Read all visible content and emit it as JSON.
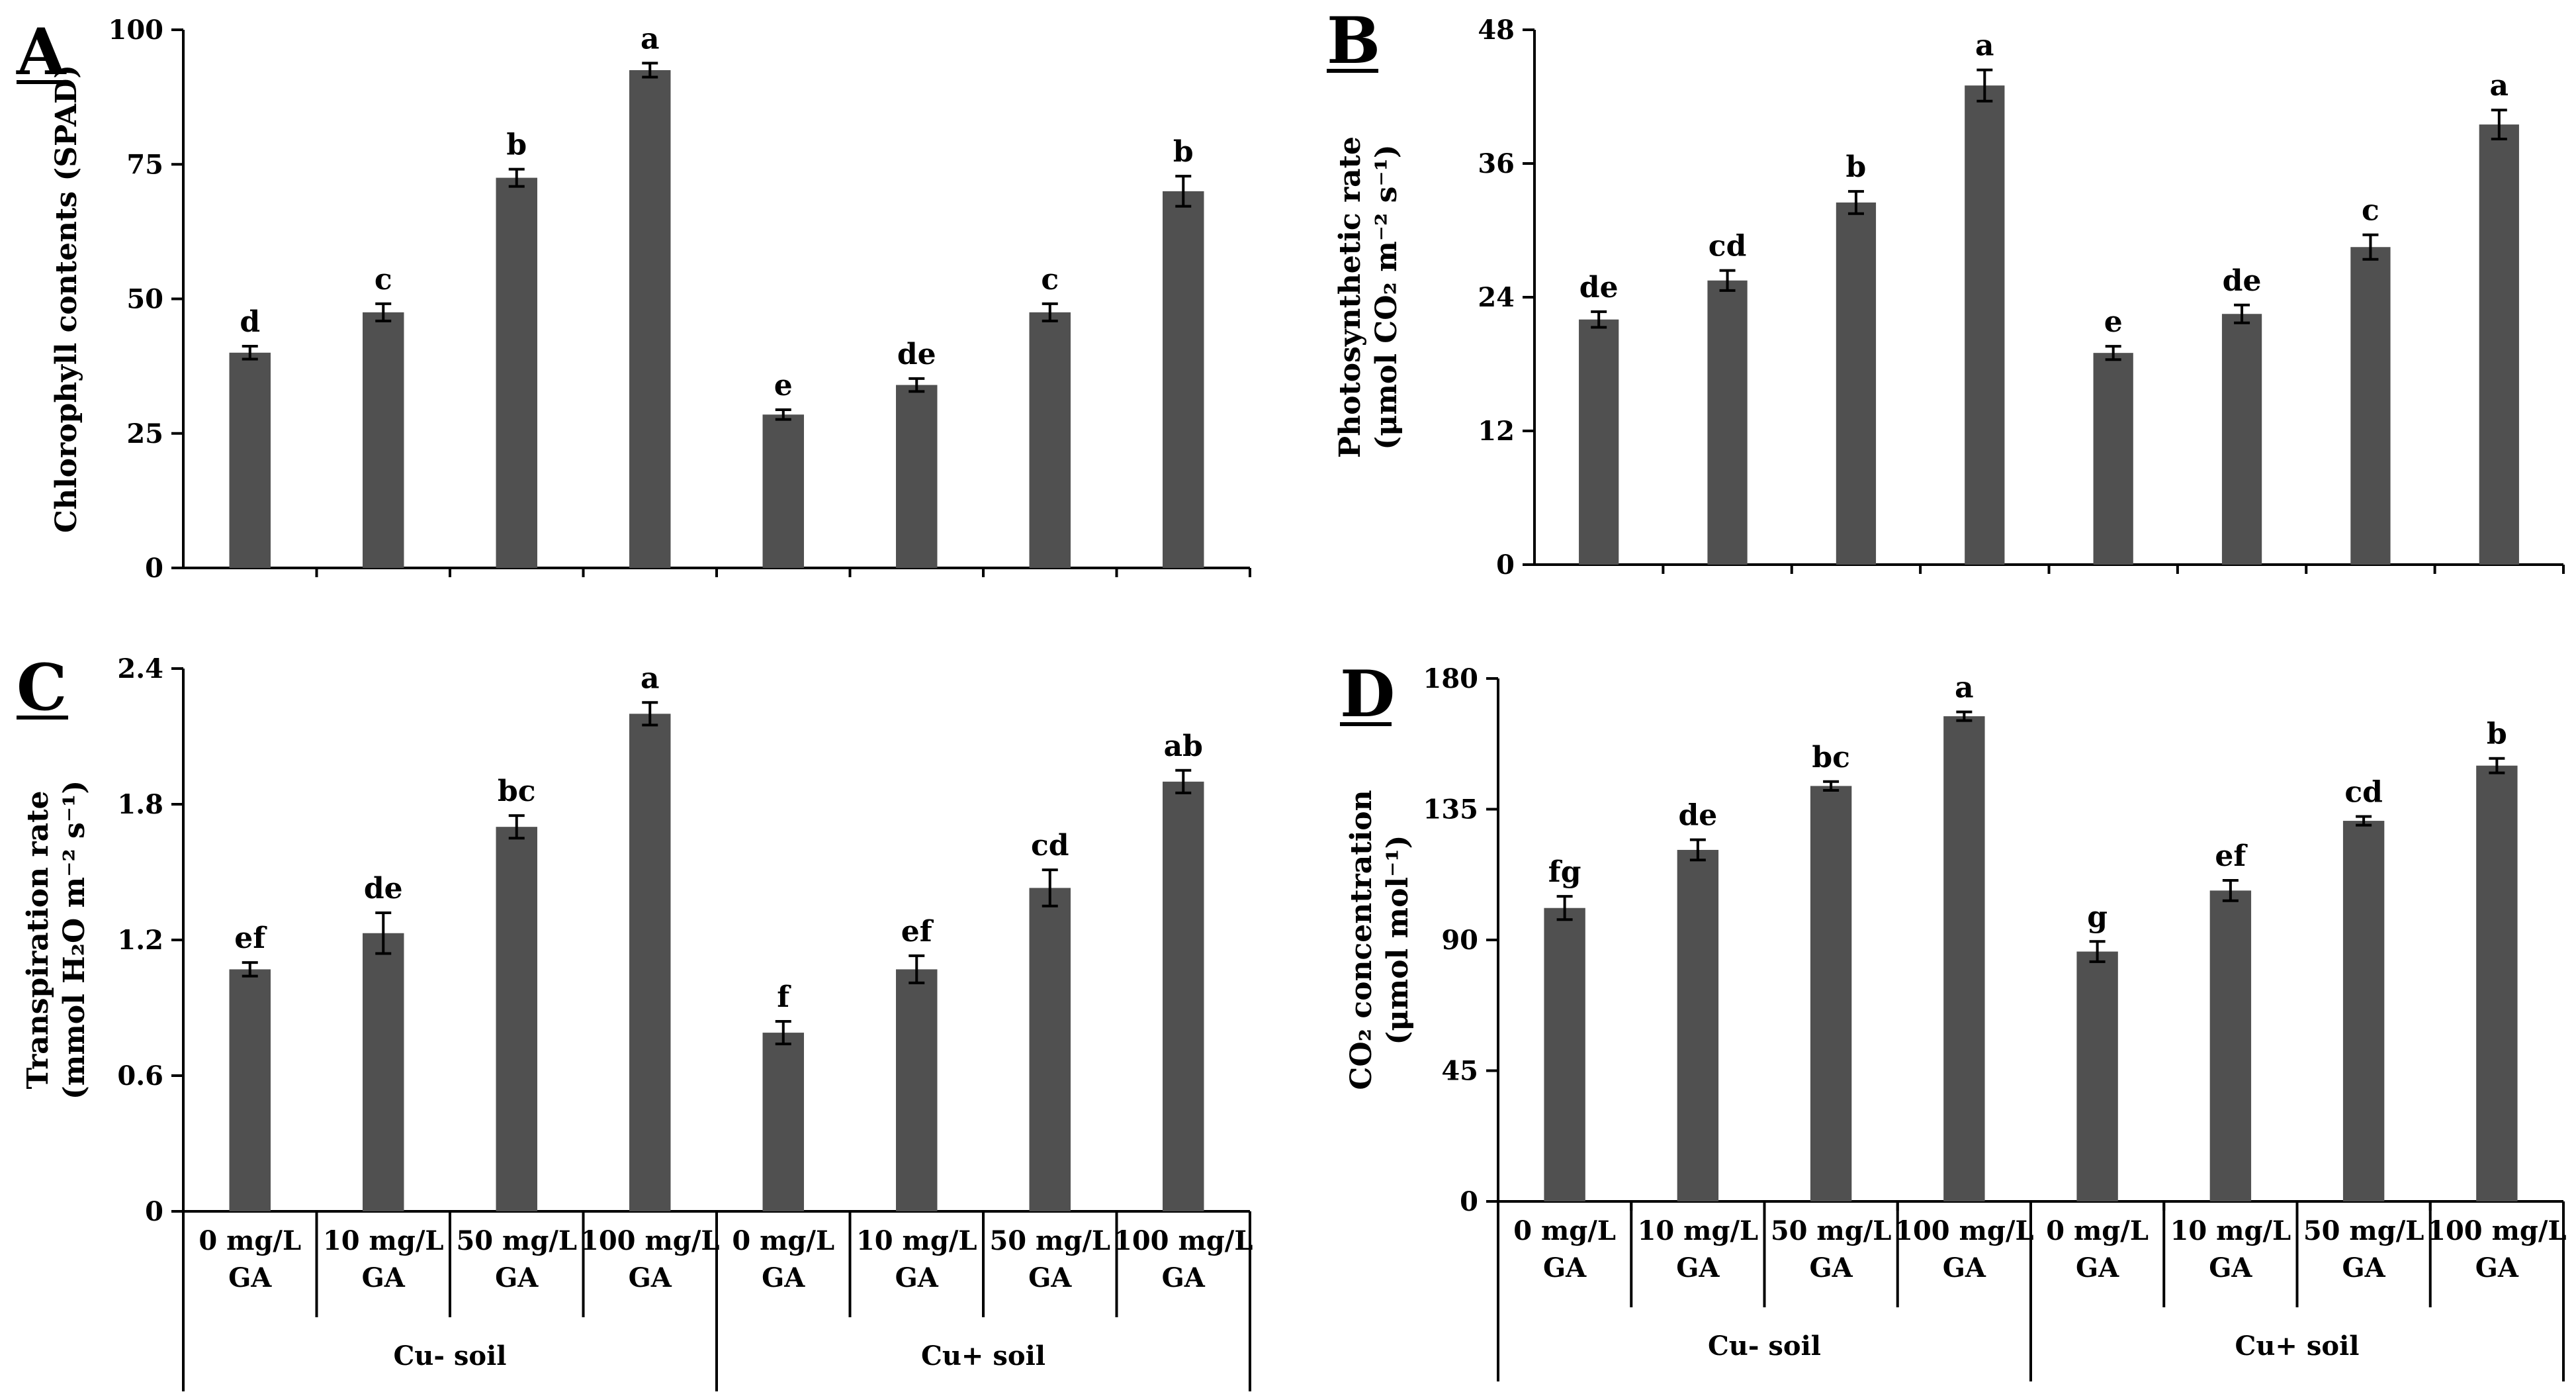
{
  "chart_data": [
    {
      "panel": "A",
      "type": "bar",
      "ylabel_lines": [
        "Chlorophyll contents (SPAD)"
      ],
      "ylim": [
        0,
        100
      ],
      "yticks": [
        0,
        25,
        50,
        75,
        100
      ],
      "categories": [
        "0 mg/L GA",
        "10 mg/L GA",
        "50 mg/L GA",
        "100 mg/L GA",
        "0 mg/L GA",
        "10 mg/L GA",
        "50 mg/L GA",
        "100 mg/L GA"
      ],
      "values": [
        40,
        47.5,
        72.5,
        92.5,
        28.5,
        34,
        47.5,
        70
      ],
      "errors": [
        1.2,
        1.6,
        1.6,
        1.3,
        0.9,
        1.2,
        1.6,
        2.8
      ],
      "letters": [
        "d",
        "c",
        "b",
        "a",
        "e",
        "de",
        "c",
        "b"
      ]
    },
    {
      "panel": "B",
      "type": "bar",
      "ylabel_lines": [
        "Photosynthetic rate",
        "(μmol CO₂ m⁻² s⁻¹)"
      ],
      "ylim": [
        0,
        48
      ],
      "yticks": [
        0,
        12,
        24,
        36,
        48
      ],
      "categories": [
        "0 mg/L GA",
        "10 mg/L GA",
        "50 mg/L GA",
        "100 mg/L GA",
        "0 mg/L GA",
        "10 mg/L GA",
        "50 mg/L GA",
        "100 mg/L GA"
      ],
      "values": [
        22,
        25.5,
        32.5,
        43,
        19,
        22.5,
        28.5,
        39.5
      ],
      "errors": [
        0.7,
        0.9,
        1.0,
        1.4,
        0.6,
        0.8,
        1.1,
        1.3
      ],
      "letters": [
        "de",
        "cd",
        "b",
        "a",
        "e",
        "de",
        "c",
        "a"
      ]
    },
    {
      "panel": "C",
      "type": "bar",
      "ylabel_lines": [
        "Transpiration rate",
        "(mmol H₂O m⁻² s⁻¹)"
      ],
      "ylim": [
        0,
        2.4
      ],
      "yticks": [
        0,
        0.6,
        1.2,
        1.8,
        2.4
      ],
      "categories": [
        "0 mg/L GA",
        "10 mg/L GA",
        "50 mg/L GA",
        "100 mg/L GA",
        "0 mg/L GA",
        "10 mg/L GA",
        "50 mg/L GA",
        "100 mg/L GA"
      ],
      "values": [
        1.07,
        1.23,
        1.7,
        2.2,
        0.79,
        1.07,
        1.43,
        1.9
      ],
      "errors": [
        0.03,
        0.09,
        0.05,
        0.05,
        0.05,
        0.06,
        0.08,
        0.05
      ],
      "letters": [
        "ef",
        "de",
        "bc",
        "a",
        "f",
        "ef",
        "cd",
        "ab"
      ]
    },
    {
      "panel": "D",
      "type": "bar",
      "ylabel_lines": [
        "CO₂ concentration",
        "(μmol mol⁻¹)"
      ],
      "ylim": [
        0,
        180
      ],
      "yticks": [
        0,
        45,
        90,
        135,
        180
      ],
      "categories": [
        "0 mg/L GA",
        "10 mg/L GA",
        "50 mg/L GA",
        "100 mg/L GA",
        "0 mg/L GA",
        "10 mg/L GA",
        "50 mg/L GA",
        "100 mg/L GA"
      ],
      "values": [
        101,
        121,
        143,
        167,
        86,
        107,
        131,
        150
      ],
      "errors": [
        4,
        3.5,
        1.5,
        1.5,
        3.5,
        3.5,
        1.5,
        2.5
      ],
      "letters": [
        "fg",
        "de",
        "bc",
        "a",
        "g",
        "ef",
        "cd",
        "b"
      ]
    }
  ],
  "x_groups": [
    "Cu- soil",
    "Cu+ soil"
  ],
  "colors": {
    "bar": "#505050"
  }
}
